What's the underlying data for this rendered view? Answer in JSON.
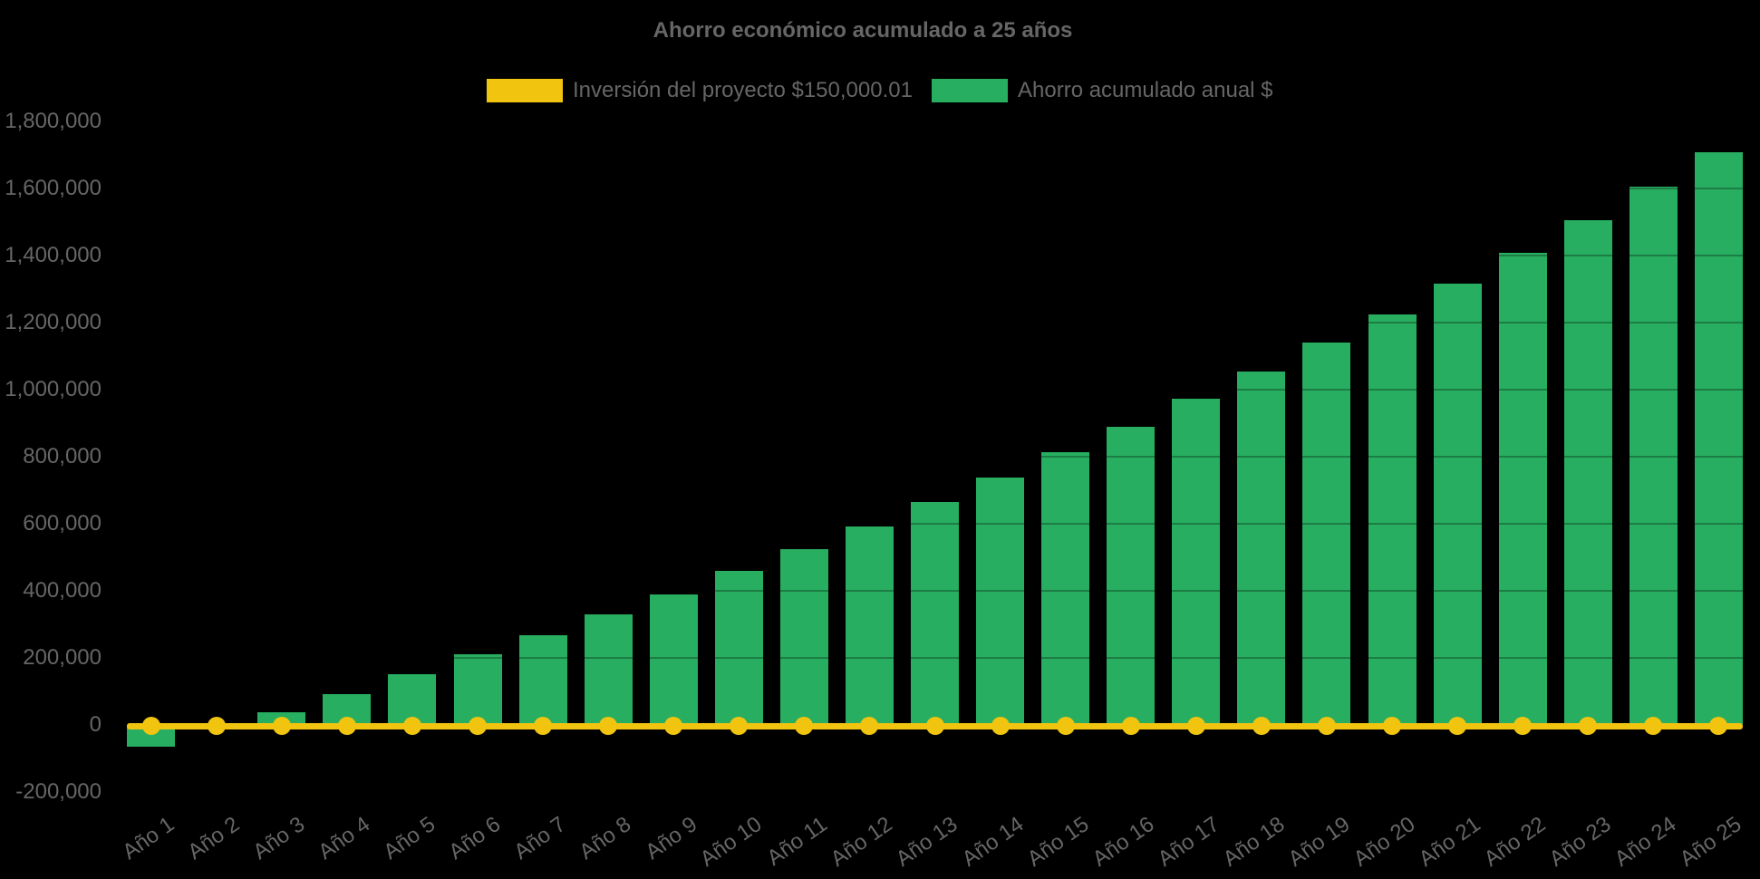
{
  "page": {
    "background": "#000000",
    "text_color": "#666666"
  },
  "chart": {
    "title": "Ahorro económico acumulado a 25 años"
  },
  "legend": {
    "investment_label": "Inversión del proyecto $150,000.01",
    "investment_color": "#F1C40F",
    "savings_label": "Ahorro acumulado anual $",
    "savings_color": "#27AE60"
  },
  "chart_data": {
    "type": "bar",
    "subtype": "bar-with-line-overlay",
    "title": "Ahorro económico acumulado a 25 años",
    "categories": [
      "Año 1",
      "Año 2",
      "Año 3",
      "Año 4",
      "Año 5",
      "Año 6",
      "Año 7",
      "Año 8",
      "Año 9",
      "Año 10",
      "Año 11",
      "Año 12",
      "Año 13",
      "Año 14",
      "Año 15",
      "Año 16",
      "Año 17",
      "Año 18",
      "Año 19",
      "Año 20",
      "Año 21",
      "Año 22",
      "Año 23",
      "Año 24",
      "Año 25"
    ],
    "series": [
      {
        "name": "Ahorro acumulado anual $",
        "type": "bar",
        "color": "#27AE60",
        "values": [
          -65000,
          -13000,
          38000,
          92000,
          151000,
          210000,
          268000,
          329000,
          389000,
          459000,
          524000,
          593000,
          664000,
          739000,
          813000,
          889000,
          973000,
          1054000,
          1140000,
          1225000,
          1317000,
          1407000,
          1506000,
          1605000,
          1707000
        ]
      },
      {
        "name": "Inversión del proyecto $150,000.01",
        "type": "line",
        "color": "#F1C40F",
        "marker": "circle",
        "values": [
          0,
          0,
          0,
          0,
          0,
          0,
          0,
          0,
          0,
          0,
          0,
          0,
          0,
          0,
          0,
          0,
          0,
          0,
          0,
          0,
          0,
          0,
          0,
          0,
          0
        ]
      }
    ],
    "ylim": [
      -200000,
      1800000
    ],
    "ytick_step": 200000,
    "ytick_values": [
      -200000,
      0,
      200000,
      400000,
      600000,
      800000,
      1000000,
      1200000,
      1400000,
      1600000,
      1800000
    ],
    "ytick_labels": [
      "-200,000",
      "0",
      "200,000",
      "400,000",
      "600,000",
      "800,000",
      "1,000,000",
      "1,200,000",
      "1,400,000",
      "1,600,000",
      "1,800,000"
    ],
    "x_label_rotation": -35,
    "grid": false,
    "legend_position": "top-center",
    "axis_text_color": "#666666",
    "background": "transparent-on-black"
  }
}
